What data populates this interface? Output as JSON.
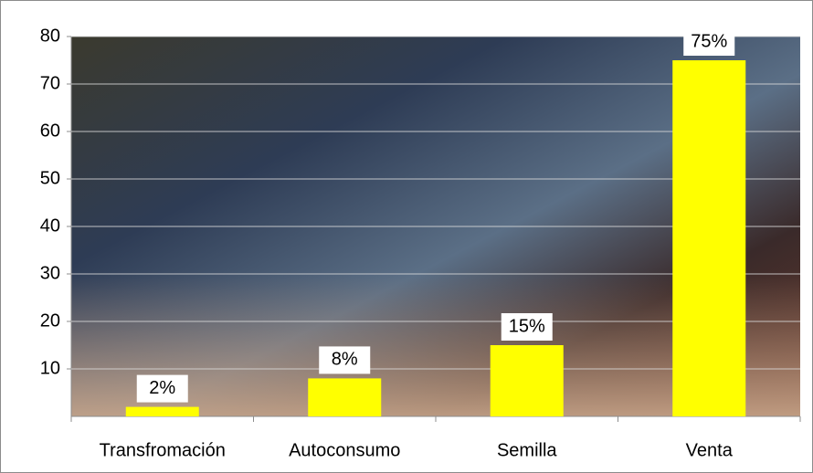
{
  "chart_data": {
    "type": "bar",
    "categories": [
      "Transfromación",
      "Autoconsumo",
      "Semilla",
      "Venta"
    ],
    "values": [
      2,
      8,
      15,
      75
    ],
    "value_labels": [
      "2%",
      "8%",
      "15%",
      "75%"
    ],
    "color": "#ffff00",
    "ylim": [
      0,
      80
    ],
    "yticks": [
      10,
      20,
      30,
      40,
      50,
      60,
      70,
      80
    ],
    "grid": true
  }
}
